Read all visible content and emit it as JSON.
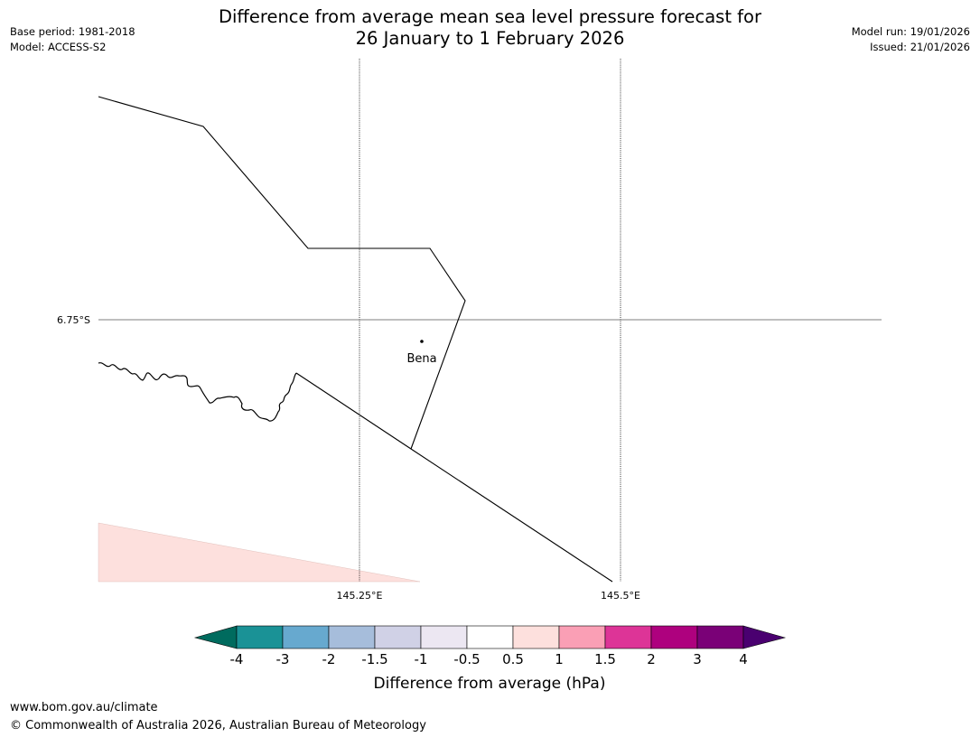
{
  "header": {
    "base_period": "Base period: 1981-2018",
    "model": "Model: ACCESS-S2",
    "title_line1": "Difference from average mean sea level pressure forecast for",
    "title_line2": "26 January to 1 February 2026",
    "model_run": "Model run: 19/01/2026",
    "issued": "Issued: 21/01/2026"
  },
  "map": {
    "lat_label": "6.75°S",
    "lon_labels": [
      "145.25°E",
      "145.5°E"
    ],
    "place_label": "Bena",
    "shading_color": "#fde0dd",
    "shading_category": "0.5 to 1"
  },
  "colorbar": {
    "title": "Difference from average (hPa)",
    "tick_labels": [
      "-4",
      "-3",
      "-2",
      "-1.5",
      "-1",
      "-0.5",
      "0.5",
      "1",
      "1.5",
      "2",
      "3",
      "4"
    ],
    "low_extend_color": "#006b5e",
    "high_extend_color": "#4a0070",
    "bin_colors": [
      "#1a9296",
      "#67a9cf",
      "#a6bddb",
      "#d0d1e6",
      "#ece7f2",
      "#ffffff",
      "#fde0dd",
      "#fa9fb5",
      "#dd3497",
      "#ae017e",
      "#7a0177"
    ]
  },
  "footer": {
    "url": "www.bom.gov.au/climate",
    "copyright": "© Commonwealth of Australia 2026, Australian Bureau of Meteorology"
  }
}
